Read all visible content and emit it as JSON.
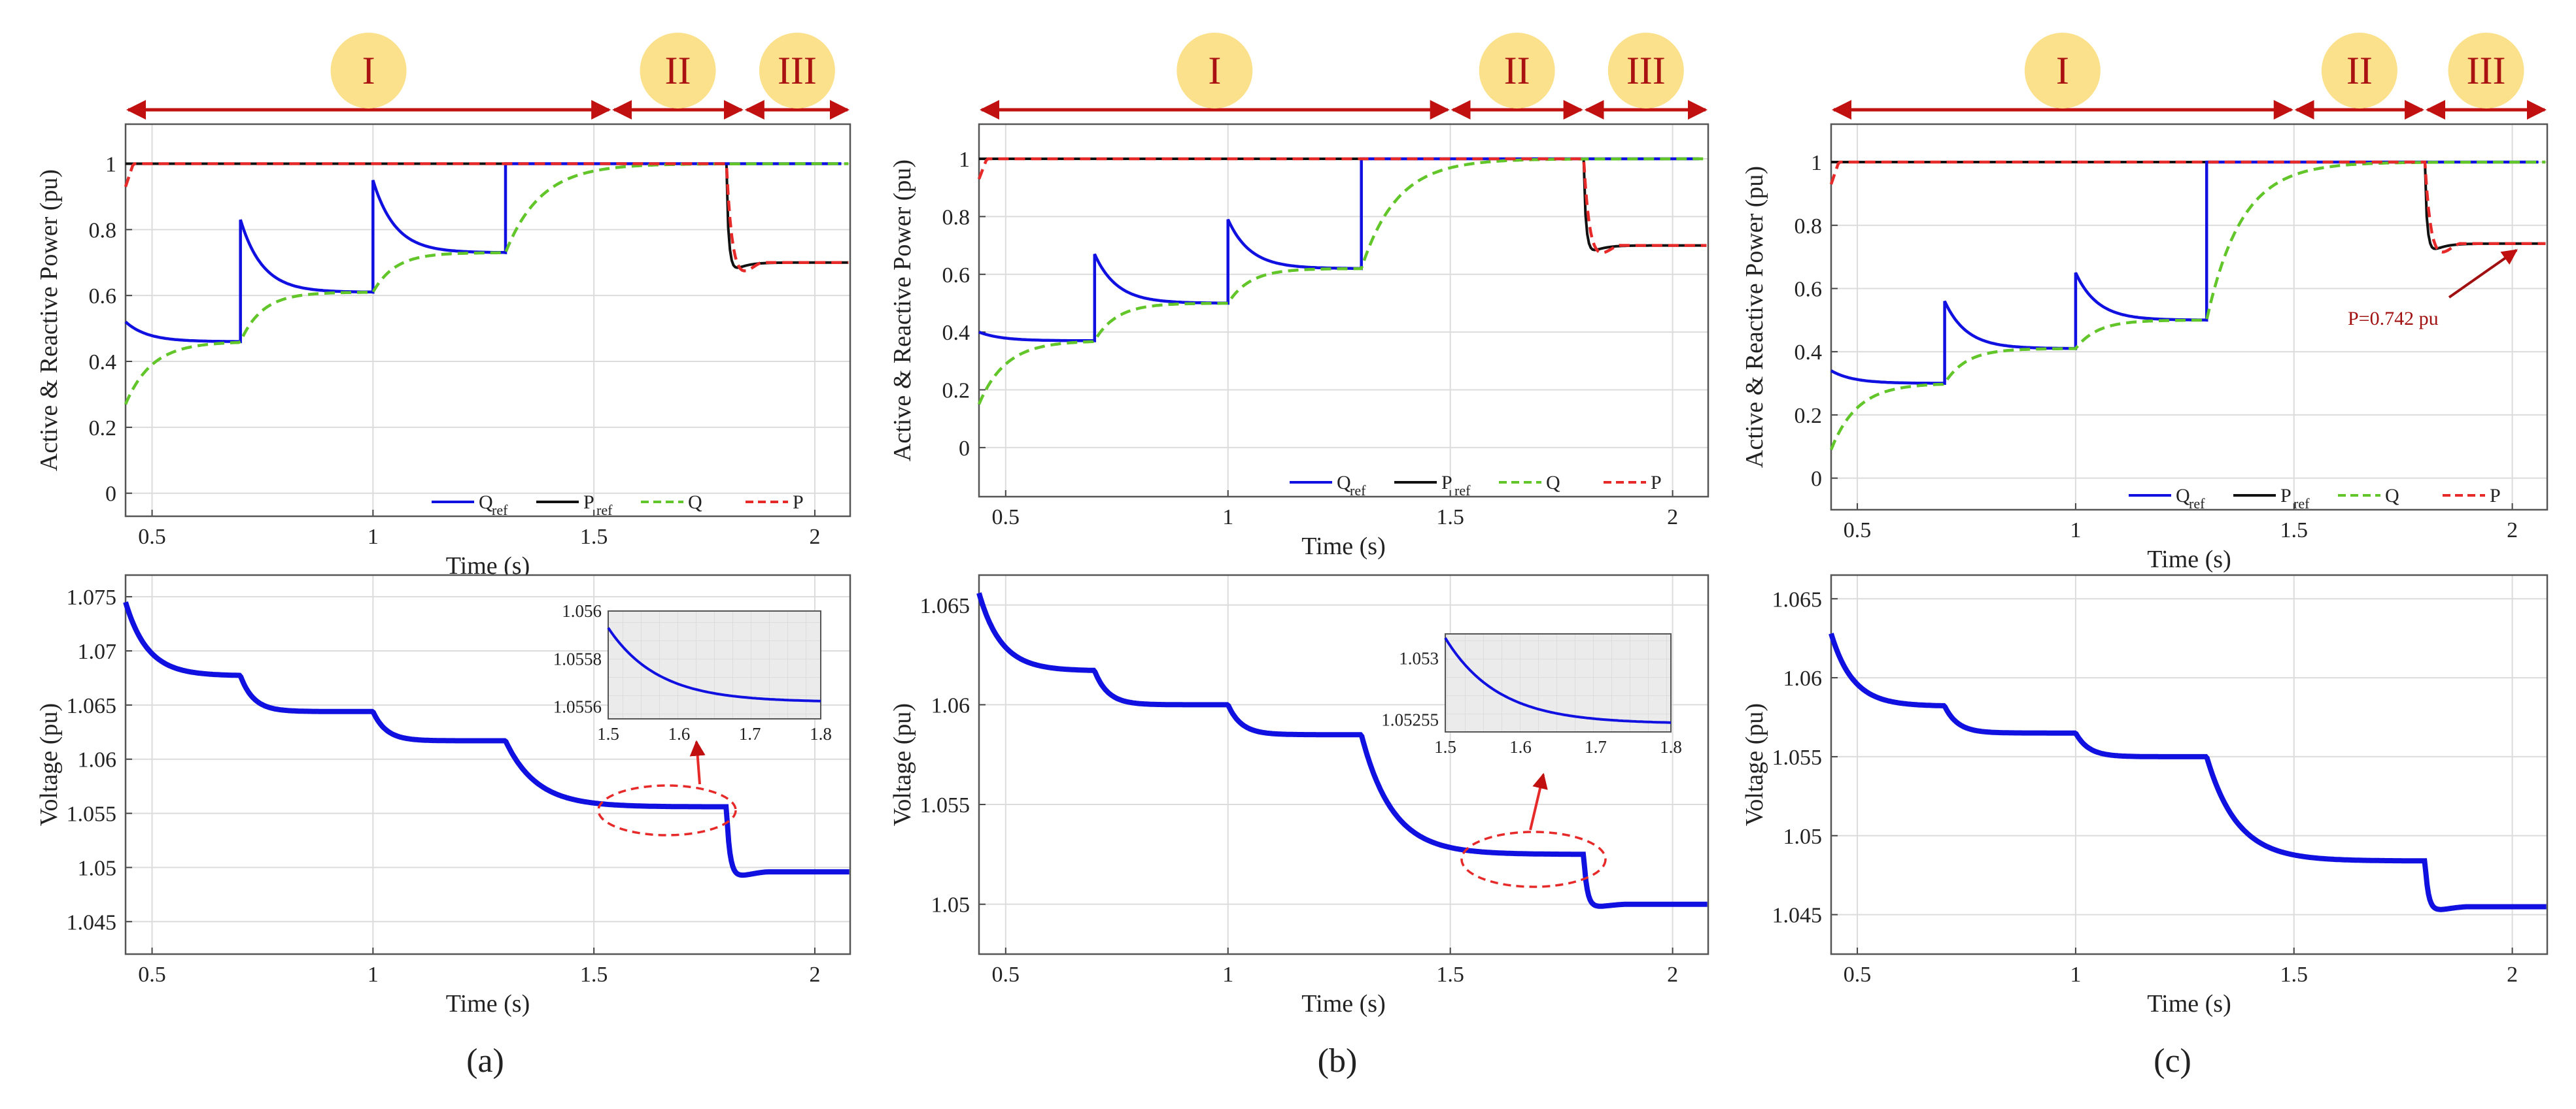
{
  "captions": [
    "(a)",
    "(b)",
    "(c)"
  ],
  "regions": [
    "I",
    "II",
    "III"
  ],
  "axis_labels": {
    "power_y": "Active & Reactive Power (pu)",
    "voltage_y": "Voltage (pu)",
    "time_x": "Time (s)"
  },
  "legend": {
    "qref_main": "Q",
    "qref_sub": "ref",
    "pref_main": "P",
    "pref_sub": "ref",
    "q": "Q",
    "p": "P"
  },
  "colors": {
    "qref": "#1010e0",
    "pref": "#111111",
    "q": "#62c62a",
    "p": "#e62a2a",
    "region": "#c01010",
    "badge": "#fbe18c"
  },
  "annotation_c": "P=0.742 pu",
  "chart_data": [
    {
      "type": "line",
      "panel": "a",
      "ylabel": "Active & Reactive Power (pu)",
      "xlabel": "Time (s)",
      "xlim": [
        0.44,
        2.08
      ],
      "ylim": [
        -0.07,
        1.12
      ],
      "xticks": [
        0.5,
        1,
        1.5,
        2
      ],
      "yticks": [
        0,
        0.2,
        0.4,
        0.6,
        0.8,
        1
      ],
      "region_bounds": [
        0.44,
        1.54,
        1.84,
        2.08
      ],
      "steps": [
        {
          "t": 0.7,
          "q": 0.46
        },
        {
          "t": 1.0,
          "q": 0.61
        },
        {
          "t": 1.3,
          "q": 0.73
        }
      ],
      "q_init": 0.52,
      "q_overshoot": 0.22,
      "q_final": 1.0,
      "p_step_time": 1.8,
      "p_final": 0.7
    },
    {
      "type": "line",
      "panel": "b",
      "ylabel": "Active & Reactive Power (pu)",
      "xlabel": "Time (s)",
      "xlim": [
        0.44,
        2.08
      ],
      "ylim": [
        -0.17,
        1.12
      ],
      "xticks": [
        0.5,
        1,
        1.5,
        2
      ],
      "yticks": [
        0,
        0.2,
        0.4,
        0.6,
        0.8,
        1
      ],
      "region_bounds": [
        0.44,
        1.5,
        1.8,
        2.08
      ],
      "steps": [
        {
          "t": 0.7,
          "q": 0.37
        },
        {
          "t": 1.0,
          "q": 0.5
        },
        {
          "t": 1.3,
          "q": 0.62
        }
      ],
      "q_init": 0.4,
      "q_overshoot": 0.17,
      "q_final": 1.0,
      "p_step_time": 1.8,
      "p_final": 0.7
    },
    {
      "type": "line",
      "panel": "c",
      "ylabel": "Active & Reactive Power (pu)",
      "xlabel": "Time (s)",
      "xlim": [
        0.44,
        2.08
      ],
      "ylim": [
        -0.1,
        1.12
      ],
      "xticks": [
        0.5,
        1,
        1.5,
        2
      ],
      "yticks": [
        0,
        0.2,
        0.4,
        0.6,
        0.8,
        1
      ],
      "region_bounds": [
        0.44,
        1.5,
        1.8,
        2.08
      ],
      "steps": [
        {
          "t": 0.7,
          "q": 0.3
        },
        {
          "t": 1.0,
          "q": 0.41
        },
        {
          "t": 1.3,
          "q": 0.5
        }
      ],
      "q_init": 0.34,
      "q_overshoot": 0.15,
      "q_final": 1.0,
      "p_step_time": 1.8,
      "p_final": 0.742
    },
    {
      "type": "line",
      "panel": "a-voltage",
      "ylabel": "Voltage (pu)",
      "xlabel": "Time (s)",
      "xlim": [
        0.44,
        2.08
      ],
      "ylim": [
        1.042,
        1.077
      ],
      "xticks": [
        0.5,
        1,
        1.5,
        2
      ],
      "yticks": [
        1.045,
        1.05,
        1.055,
        1.06,
        1.065,
        1.07,
        1.075
      ],
      "ytick_labels": [
        "1.045",
        "1.05",
        "1.055",
        "1.06",
        "1.065",
        "1.07",
        "1.075"
      ],
      "v_start": 1.0745,
      "levels": [
        {
          "t": 0.7,
          "v": 1.0677
        },
        {
          "t": 1.0,
          "v": 1.0644
        },
        {
          "t": 1.3,
          "v": 1.0617
        },
        {
          "t": 1.8,
          "v": 1.0556
        }
      ],
      "v_dip": 1.0487,
      "v_final": 1.0496,
      "inset": {
        "xlim": [
          1.5,
          1.8
        ],
        "ylim": [
          1.05555,
          1.056
        ],
        "xticks": [
          1.5,
          1.6,
          1.7,
          1.8
        ],
        "yticks": [
          1.0556,
          1.0558,
          1.056
        ],
        "ytick_labels": [
          "1.0556",
          "1.0558",
          "1.056"
        ],
        "v_start": 1.05593,
        "v_end": 1.05562
      }
    },
    {
      "type": "line",
      "panel": "b-voltage",
      "ylabel": "Voltage (pu)",
      "xlabel": "Time (s)",
      "xlim": [
        0.44,
        2.08
      ],
      "ylim": [
        1.0475,
        1.0665
      ],
      "xticks": [
        0.5,
        1,
        1.5,
        2
      ],
      "yticks": [
        1.05,
        1.055,
        1.06,
        1.065
      ],
      "ytick_labels": [
        "1.05",
        "1.055",
        "1.06",
        "1.065"
      ],
      "v_start": 1.0656,
      "levels": [
        {
          "t": 0.7,
          "v": 1.0617
        },
        {
          "t": 1.0,
          "v": 1.06
        },
        {
          "t": 1.3,
          "v": 1.0585
        },
        {
          "t": 1.8,
          "v": 1.0525
        }
      ],
      "v_dip": 1.0497,
      "v_final": 1.05,
      "inset": {
        "xlim": [
          1.5,
          1.8
        ],
        "ylim": [
          1.05246,
          1.05318
        ],
        "xticks": [
          1.5,
          1.6,
          1.7,
          1.8
        ],
        "yticks": [
          1.05255,
          1.053
        ],
        "ytick_labels": [
          "1.05255",
          "1.053"
        ],
        "v_start": 1.05315,
        "v_end": 1.05252
      }
    },
    {
      "type": "line",
      "panel": "c-voltage",
      "ylabel": "Voltage (pu)",
      "xlabel": "Time (s)",
      "xlim": [
        0.44,
        2.08
      ],
      "ylim": [
        1.0425,
        1.0665
      ],
      "xticks": [
        0.5,
        1,
        1.5,
        2
      ],
      "yticks": [
        1.045,
        1.05,
        1.055,
        1.06,
        1.065
      ],
      "ytick_labels": [
        "1.045",
        "1.05",
        "1.055",
        "1.06",
        "1.065"
      ],
      "v_start": 1.0628,
      "levels": [
        {
          "t": 0.7,
          "v": 1.0582
        },
        {
          "t": 1.0,
          "v": 1.0565
        },
        {
          "t": 1.3,
          "v": 1.055
        },
        {
          "t": 1.8,
          "v": 1.0484
        }
      ],
      "v_dip": 1.045,
      "v_final": 1.0455
    }
  ]
}
